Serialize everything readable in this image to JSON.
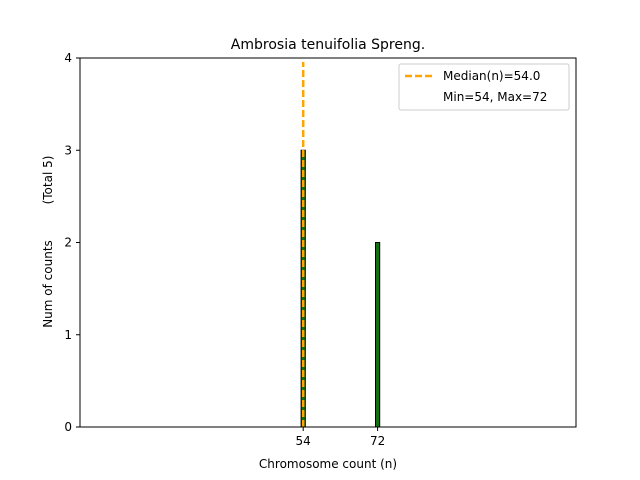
{
  "chart_data": {
    "type": "bar",
    "title": "Ambrosia tenuifolia Spreng.",
    "xlabel": "Chromosome count (n)",
    "ylabel": "Num of counts",
    "ylabel_total": "(Total 5)",
    "xlim": [
      0,
      120
    ],
    "ylim": [
      0,
      4
    ],
    "x": [
      54,
      72
    ],
    "values": [
      3,
      2
    ],
    "xticks": [
      "54",
      "72"
    ],
    "yticks": [
      "0",
      "1",
      "2",
      "3",
      "4"
    ],
    "median": 54.0,
    "legend": {
      "placement": "top-right",
      "entries": [
        "Median(n)=54.0",
        "Min=54, Max=72"
      ]
    },
    "colors": {
      "bar_fill": "#137013",
      "bar_edge": "#000000",
      "median_line": "#ffa500"
    }
  }
}
